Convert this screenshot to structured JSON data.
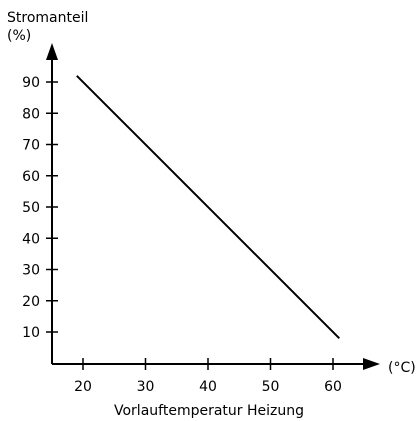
{
  "chart_data": {
    "type": "line",
    "ylabel_line1": "Stromanteil",
    "ylabel_line2": "(%)",
    "xunit": "(°C)",
    "xlabel": "Vorlauftemperatur Heizung",
    "xticks": [
      20,
      30,
      40,
      50,
      60
    ],
    "yticks": [
      10,
      20,
      30,
      40,
      50,
      60,
      70,
      80,
      90
    ],
    "xlim": [
      15,
      65
    ],
    "ylim": [
      0,
      100
    ],
    "grid": false,
    "series": [
      {
        "x": [
          19,
          61
        ],
        "y": [
          92,
          8
        ]
      }
    ]
  }
}
